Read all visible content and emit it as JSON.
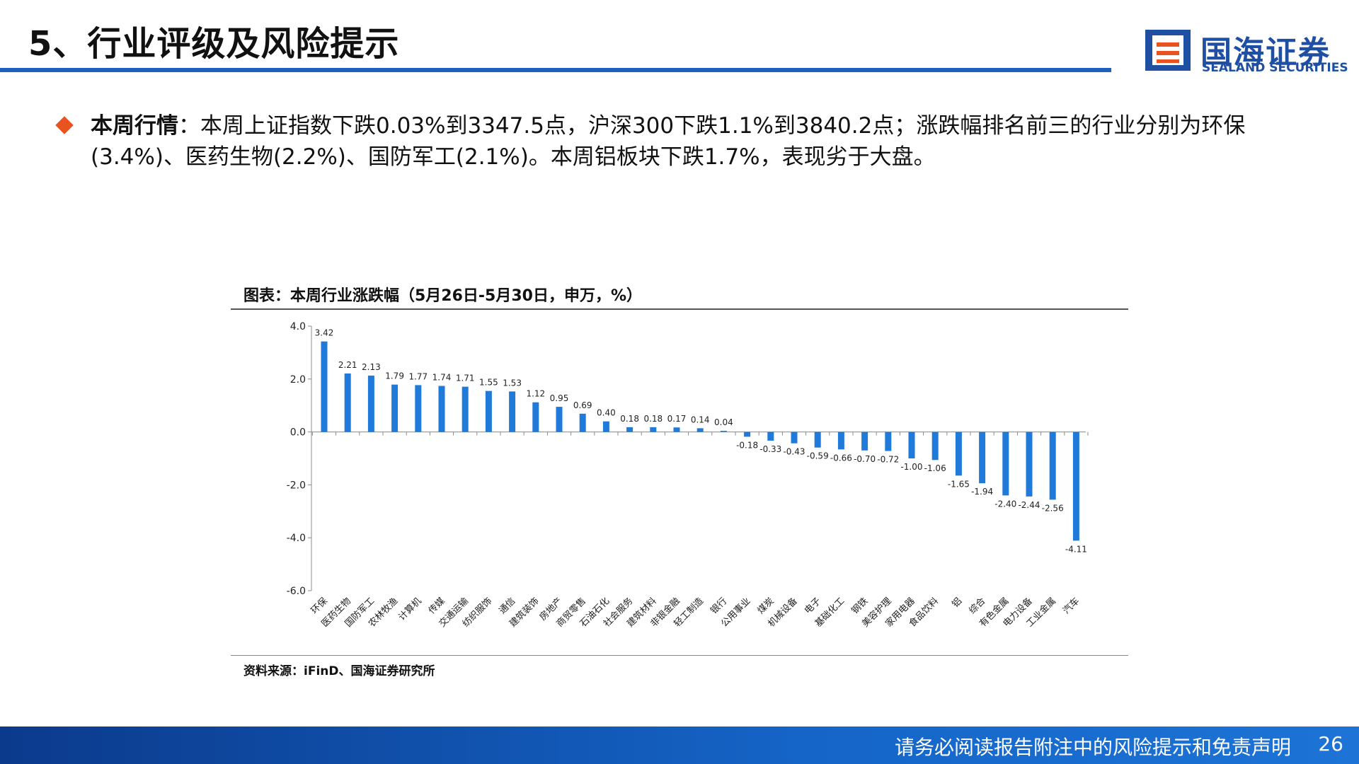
{
  "slide": {
    "title": "5、行业评级及风险提示"
  },
  "logo": {
    "name_cn": "国海证券",
    "name_en": "SEALAND SECURITIES"
  },
  "summary": {
    "lead": "本周行情",
    "text": "：本周上证指数下跌0.03%到3347.5点，沪深300下跌1.1%到3840.2点；涨跌幅排名前三的行业分别为环保(3.4%)、医药生物(2.2%)、国防军工(2.1%)。本周铝板块下跌1.7%，表现劣于大盘。"
  },
  "chart_title": "图表：本周行业涨跌幅（5月26日-5月30日，申万，%）",
  "source": "资料来源：iFinD、国海证券研究所",
  "footer": {
    "disclaimer": "请务必阅读报告附注中的风险提示和免责声明",
    "page": "26"
  },
  "colors": {
    "bar": "#1f7ad9",
    "accent": "#1f5fbf",
    "bullet": "#e8531f"
  },
  "chart_data": {
    "type": "bar",
    "title": "图表：本周行业涨跌幅（5月26日-5月30日，申万，%）",
    "categories": [
      "环保",
      "医药生物",
      "国防军工",
      "农林牧渔",
      "计算机",
      "传媒",
      "交通运输",
      "纺织服饰",
      "通信",
      "建筑装饰",
      "房地产",
      "商贸零售",
      "石油石化",
      "社会服务",
      "建筑材料",
      "非银金融",
      "轻工制造",
      "银行",
      "公用事业",
      "煤炭",
      "机械设备",
      "电子",
      "基础化工",
      "钢铁",
      "美容护理",
      "家用电器",
      "食品饮料",
      "铝",
      "综合",
      "有色金属",
      "电力设备",
      "工业金属",
      "汽车"
    ],
    "values": [
      3.42,
      2.21,
      2.13,
      1.79,
      1.77,
      1.74,
      1.71,
      1.55,
      1.53,
      1.12,
      0.95,
      0.69,
      0.4,
      0.18,
      0.18,
      0.17,
      0.14,
      0.04,
      -0.18,
      -0.33,
      -0.43,
      -0.59,
      -0.66,
      -0.7,
      -0.72,
      -1.0,
      -1.06,
      -1.65,
      -1.94,
      -2.4,
      -2.44,
      -2.56,
      -4.11
    ],
    "ylim": [
      -6.0,
      4.0
    ],
    "yticks": [
      "4.0",
      "2.0",
      "0.0",
      "-2.0",
      "-4.0",
      "-6.0"
    ],
    "grid": false,
    "xlabel": "",
    "ylabel": ""
  }
}
